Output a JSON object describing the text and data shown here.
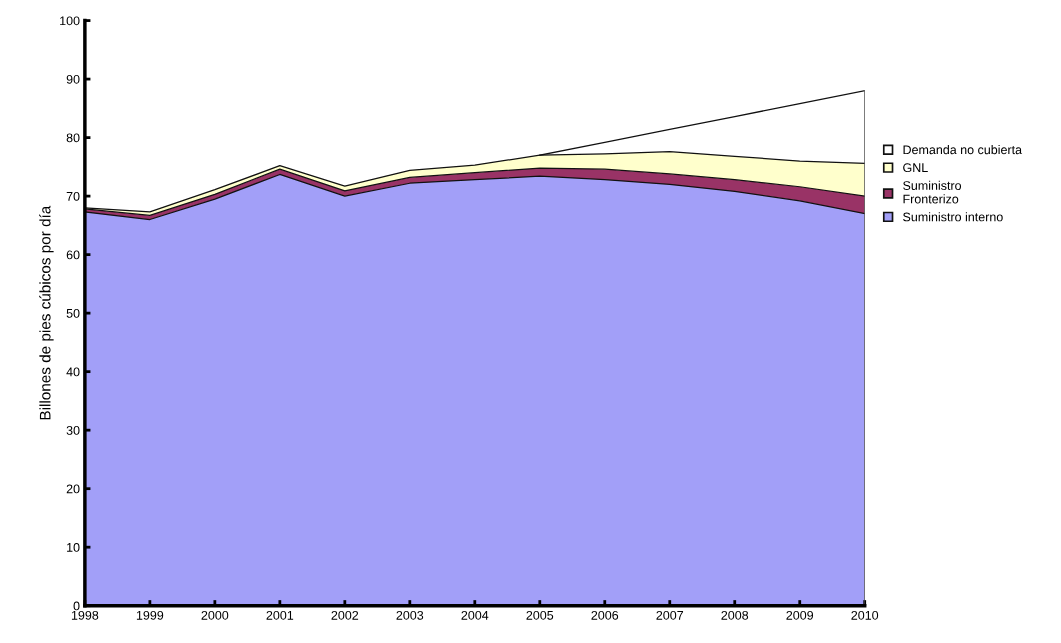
{
  "chart_data": {
    "type": "area",
    "stacked": true,
    "ylabel": "Billones de pies cúbicos por día",
    "x": [
      1998,
      1999,
      2000,
      2001,
      2002,
      2003,
      2004,
      2005,
      2006,
      2007,
      2008,
      2009,
      2010
    ],
    "series": [
      {
        "name": "Suministro interno",
        "color": "#a29ff8",
        "values": [
          67.3,
          66,
          69.5,
          73.7,
          70,
          72.2,
          72.8,
          73.4,
          72.8,
          72,
          70.8,
          69.2,
          67
        ]
      },
      {
        "name": "Suministro\nFronterizo",
        "color": "#993366",
        "values": [
          0.5,
          0.7,
          0.8,
          0.9,
          0.9,
          1.0,
          1.2,
          1.4,
          1.8,
          1.8,
          2.0,
          2.4,
          3.0
        ]
      },
      {
        "name": "GNL",
        "color": "#ffffcc",
        "values": [
          0.2,
          0.6,
          0.8,
          0.6,
          0.8,
          1.2,
          1.3,
          2.2,
          2.6,
          3.8,
          4.0,
          4.4,
          5.6
        ]
      },
      {
        "name": "Demanda no cubierta",
        "color": "#ffffff",
        "values": [
          null,
          null,
          null,
          null,
          null,
          null,
          null,
          0,
          2.0,
          3.8,
          6.8,
          9.8,
          12.4
        ]
      }
    ],
    "xlim": [
      1998,
      2010
    ],
    "xticks": [
      1998,
      1999,
      2000,
      2001,
      2002,
      2003,
      2004,
      2005,
      2006,
      2007,
      2008,
      2009,
      2010
    ],
    "ylim": [
      0,
      100
    ],
    "yticks": [
      0,
      10,
      20,
      30,
      40,
      50,
      60,
      70,
      80,
      90,
      100
    ],
    "grid": false,
    "legend": "right"
  }
}
